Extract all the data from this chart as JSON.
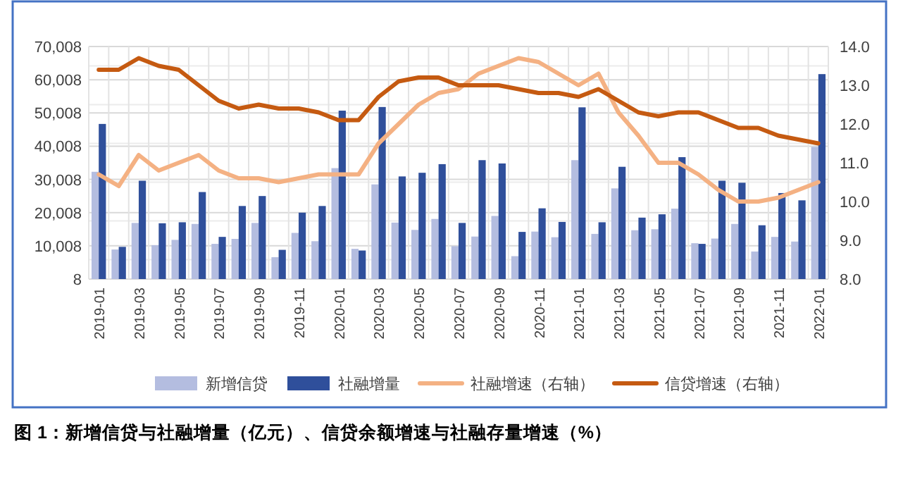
{
  "chart_data": {
    "type": "bar",
    "title": "图 1：新增信贷与社融增量（亿元）、信贷余额增速与社融存量增速（%）",
    "categories": [
      "2019-01",
      null,
      "2019-03",
      null,
      "2019-05",
      null,
      "2019-07",
      null,
      "2019-09",
      null,
      "2019-11",
      null,
      "2020-01",
      null,
      "2020-03",
      null,
      "2020-05",
      null,
      "2020-07",
      null,
      "2020-09",
      null,
      "2020-11",
      null,
      "2021-01",
      null,
      "2021-03",
      null,
      "2021-05",
      null,
      "2021-07",
      null,
      "2021-09",
      null,
      "2021-11",
      null,
      "2022-01"
    ],
    "series": [
      {
        "name": "新增信贷",
        "color": "#b4bde0",
        "values": [
          32300,
          8900,
          16900,
          10200,
          11800,
          16600,
          10600,
          12100,
          16900,
          6600,
          13900,
          11400,
          33400,
          9100,
          28500,
          17000,
          14800,
          18100,
          9900,
          12800,
          19000,
          6900,
          14300,
          12600,
          35800,
          13600,
          27300,
          14700,
          15000,
          21200,
          10800,
          12200,
          16600,
          8300,
          12700,
          11300,
          39800
        ]
      },
      {
        "name": "社融增量",
        "color": "#2f4f9b",
        "values": [
          46700,
          9700,
          29600,
          16800,
          17100,
          26200,
          12700,
          22000,
          25000,
          8800,
          20000,
          22000,
          50700,
          8600,
          51800,
          30900,
          32000,
          34600,
          16900,
          35800,
          34800,
          14200,
          21300,
          17200,
          51700,
          17100,
          33800,
          18500,
          19500,
          36700,
          10600,
          29600,
          29000,
          16200,
          25900,
          23700,
          61700
        ]
      },
      {
        "name": "社融增速（右轴）",
        "type": "line",
        "axis": "y2",
        "color": "#f4b183",
        "values": [
          10.7,
          10.4,
          11.2,
          10.8,
          11.0,
          11.2,
          10.8,
          10.6,
          10.6,
          10.5,
          10.6,
          10.7,
          10.7,
          10.7,
          11.5,
          12.0,
          12.5,
          12.8,
          12.9,
          13.3,
          13.5,
          13.7,
          13.6,
          13.3,
          13.0,
          13.3,
          12.3,
          11.7,
          11.0,
          11.0,
          10.7,
          10.3,
          10.0,
          10.0,
          10.1,
          10.3,
          10.5
        ]
      },
      {
        "name": "信贷增速（右轴）",
        "type": "line",
        "axis": "y2",
        "color": "#c55a11",
        "values": [
          13.4,
          13.4,
          13.7,
          13.5,
          13.4,
          13.0,
          12.6,
          12.4,
          12.5,
          12.4,
          12.4,
          12.3,
          12.1,
          12.1,
          12.7,
          13.1,
          13.2,
          13.2,
          13.0,
          13.0,
          13.0,
          12.9,
          12.8,
          12.8,
          12.7,
          12.9,
          12.6,
          12.3,
          12.2,
          12.3,
          12.3,
          12.1,
          11.9,
          11.9,
          11.7,
          11.6,
          11.5
        ]
      }
    ],
    "ylim": [
      8,
      70008
    ],
    "yticks": [
      8,
      {
        "value": 10008,
        "label": "10,008"
      },
      {
        "value": 20008,
        "label": "20,008"
      },
      {
        "value": 30008,
        "label": "30,008"
      },
      {
        "value": 40008,
        "label": "40,008"
      },
      {
        "value": 50008,
        "label": "50,008"
      },
      {
        "value": 60008,
        "label": "60,008"
      },
      {
        "value": 70008,
        "label": "70,008"
      }
    ],
    "y2lim": [
      8,
      14
    ],
    "y2ticks": [
      {
        "value": 8,
        "label": "8.0"
      },
      {
        "value": 9,
        "label": "9.0"
      },
      {
        "value": 10,
        "label": "10.0"
      },
      {
        "value": 11,
        "label": "11.0"
      },
      {
        "value": 12,
        "label": "12.0"
      },
      {
        "value": 13,
        "label": "13.0"
      },
      {
        "value": 14,
        "label": "14.0"
      }
    ],
    "grid": true,
    "legend": "bottom",
    "marker": "none",
    "line_style": "solid"
  }
}
